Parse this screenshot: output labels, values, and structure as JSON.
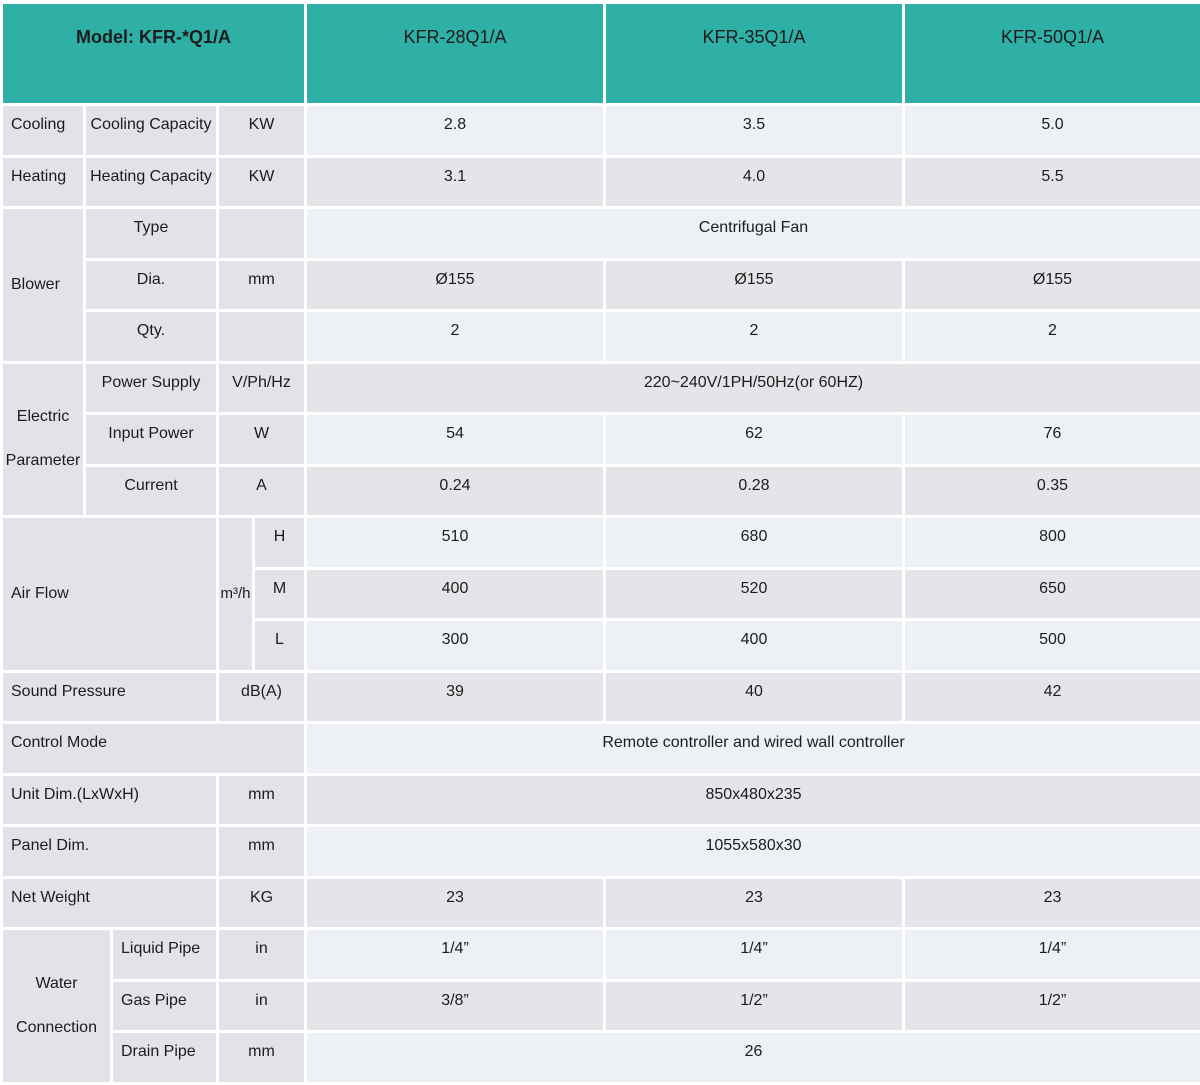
{
  "colors": {
    "header_teal": "#2fb0a6",
    "label_cell": "#e2e3e8",
    "row_light": "#edf1f5",
    "row_gray": "#e4e5e9",
    "text": "#1c1c1c"
  },
  "header": {
    "model": "Model: KFR-*Q1/A",
    "columns": [
      "KFR-28Q1/A",
      "KFR-35Q1/A",
      "KFR-50Q1/A"
    ]
  },
  "rows": {
    "cooling": {
      "cat": "Cooling",
      "sub": "Cooling Capacity",
      "unit": "KW",
      "v": [
        "2.8",
        "3.5",
        "5.0"
      ]
    },
    "heating": {
      "cat": "Heating",
      "sub": "Heating Capacity",
      "unit": "KW",
      "v": [
        "3.1",
        "4.0",
        "5.5"
      ]
    },
    "blower": {
      "cat": "Blower",
      "type": {
        "sub": "Type",
        "unit": "",
        "value": "Centrifugal Fan"
      },
      "dia": {
        "sub": "Dia.",
        "unit": "mm",
        "v": [
          "Ø155",
          "Ø155",
          "Ø155"
        ]
      },
      "qty": {
        "sub": "Qty.",
        "unit": "",
        "v": [
          "2",
          "2",
          "2"
        ]
      }
    },
    "electric": {
      "cat": "Electric Parameter",
      "power_supply": {
        "sub": "Power Supply",
        "unit": "V/Ph/Hz",
        "value": "220~240V/1PH/50Hz(or 60HZ)"
      },
      "input_power": {
        "sub": "Input Power",
        "unit": "W",
        "v": [
          "54",
          "62",
          "76"
        ]
      },
      "current": {
        "sub": "Current",
        "unit": "A",
        "v": [
          "0.24",
          "0.28",
          "0.35"
        ]
      }
    },
    "airflow": {
      "cat": "Air Flow",
      "unit": "m³/h",
      "h": {
        "sub": "H",
        "v": [
          "510",
          "680",
          "800"
        ]
      },
      "m": {
        "sub": "M",
        "v": [
          "400",
          "520",
          "650"
        ]
      },
      "l": {
        "sub": "L",
        "v": [
          "300",
          "400",
          "500"
        ]
      }
    },
    "sound": {
      "cat": "Sound Pressure",
      "unit": "dB(A)",
      "v": [
        "39",
        "40",
        "42"
      ]
    },
    "control": {
      "cat": "Control Mode",
      "value": "Remote controller and wired wall controller"
    },
    "unit_dim": {
      "cat": "Unit Dim.(LxWxH)",
      "unit": "mm",
      "value": "850x480x235"
    },
    "panel_dim": {
      "cat": "Panel Dim.",
      "unit": "mm",
      "value": "1055x580x30"
    },
    "net_weight": {
      "cat": "Net Weight",
      "unit": "KG",
      "v": [
        "23",
        "23",
        "23"
      ]
    },
    "water": {
      "cat": "Water Connection",
      "liquid": {
        "sub": "Liquid Pipe",
        "unit": "in",
        "v": [
          "1/4”",
          "1/4”",
          "1/4”"
        ]
      },
      "gas": {
        "sub": "Gas Pipe",
        "unit": "in",
        "v": [
          "3/8”",
          "1/2”",
          "1/2”"
        ]
      },
      "drain": {
        "sub": "Drain Pipe",
        "unit": "mm",
        "value": "26"
      }
    }
  }
}
